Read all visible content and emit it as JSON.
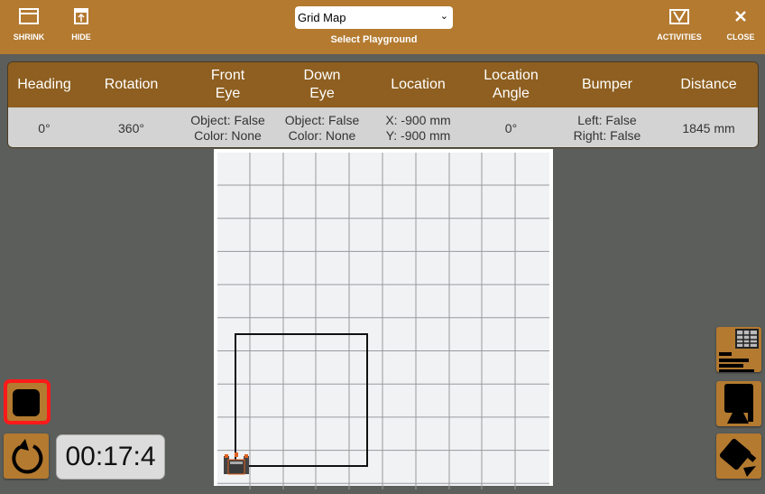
{
  "toolbar": {
    "shrink": "SHRINK",
    "hide": "HIDE",
    "activities": "ACTIVITIES",
    "close": "CLOSE",
    "playground_select": {
      "value": "Grid Map",
      "label": "Select Playground"
    }
  },
  "sensors": {
    "headers": [
      "Heading",
      "Rotation",
      "Front\nEye",
      "Down\nEye",
      "Location",
      "Location\nAngle",
      "Bumper",
      "Distance"
    ],
    "values": [
      "0°",
      "360°",
      "Object: False\nColor: None",
      "Object: False\nColor: None",
      "X: -900 mm\nY: -900 mm",
      "0°",
      "Left: False\nRight: False",
      "1845 mm"
    ]
  },
  "controls": {
    "timer": "00:17:4"
  },
  "colors": {
    "accent": "#b37a30",
    "header": "#8e5f20",
    "stop_highlight": "#ff1a1a"
  },
  "icons": [
    "shrink-icon",
    "hide-icon",
    "activities-icon",
    "close-icon",
    "stop-icon",
    "reset-icon",
    "data-table-icon",
    "robot-view-icon",
    "camera-view-icon"
  ]
}
